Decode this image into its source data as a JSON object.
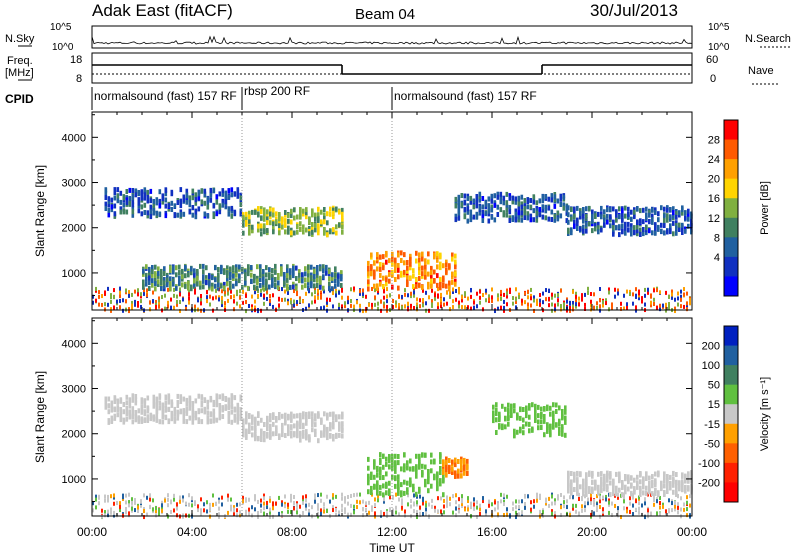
{
  "header": {
    "station": "Adak East (fitACF)",
    "beam": "Beam 04",
    "date": "30/Jul/2013"
  },
  "strip": {
    "nsky_label": "N.Sky",
    "nsearch_label": "N.Search",
    "freq_label_line1": "Freq.",
    "freq_label_line2": "[MHz]",
    "nave_label": "Nave",
    "cpid_label": "CPID",
    "nsky_ticks": [
      "10^5",
      "10^0"
    ],
    "nsearch_ticks": [
      "10^5",
      "10^0"
    ],
    "freq_ticks": [
      "18",
      "8"
    ],
    "nave_ticks": [
      "60",
      "0"
    ],
    "cpid_segments": [
      {
        "label": "normalsound (fast) 157 RF",
        "start": 0,
        "end": 6
      },
      {
        "label": "rbsp 200 RF",
        "start": 6,
        "end": 12
      },
      {
        "label": "normalsound (fast) 157 RF",
        "start": 12,
        "end": 24
      }
    ],
    "freq_steps": [
      {
        "start": 0,
        "end": 10,
        "value": 14
      },
      {
        "start": 10,
        "end": 18,
        "value": 11
      },
      {
        "start": 18,
        "end": 24,
        "value": 14
      }
    ]
  },
  "chart_data": [
    {
      "type": "heatmap",
      "title": "",
      "xlabel": "Time UT",
      "ylabel": "Slant Range [km]",
      "xlim": [
        0,
        24
      ],
      "ylim": [
        180,
        4560
      ],
      "x_ticks": [
        "00:00",
        "04:00",
        "08:00",
        "12:00",
        "16:00",
        "20:00",
        "00:00"
      ],
      "y_ticks": [
        1000,
        2000,
        3000,
        4000
      ],
      "colorbar": {
        "label": "Power [dB]",
        "ticks": [
          "28",
          "24",
          "20",
          "16",
          "12",
          "8",
          "4"
        ],
        "colors": [
          "#ff0000",
          "#ff5a00",
          "#ffa000",
          "#ffd400",
          "#80b040",
          "#408060",
          "#2060a0",
          "#1030c0",
          "#0000ff"
        ]
      },
      "regions": [
        {
          "t0": 0.5,
          "t1": 6,
          "r0": 2300,
          "r1": 2900,
          "level": 8
        },
        {
          "t0": 6,
          "t1": 10,
          "r0": 1900,
          "r1": 2500,
          "level": 16
        },
        {
          "t0": 11,
          "t1": 14.5,
          "r0": 700,
          "r1": 1500,
          "level": 24
        },
        {
          "t0": 2,
          "t1": 10,
          "r0": 700,
          "r1": 1200,
          "level": 12
        },
        {
          "t0": 14.5,
          "t1": 19,
          "r0": 2200,
          "r1": 2800,
          "level": 8
        },
        {
          "t0": 19,
          "t1": 24,
          "r0": 1900,
          "r1": 2500,
          "level": 8
        }
      ]
    },
    {
      "type": "heatmap",
      "title": "",
      "xlabel": "Time UT",
      "ylabel": "Slant Range [km]",
      "xlim": [
        0,
        24
      ],
      "ylim": [
        180,
        4560
      ],
      "x_ticks": [
        "00:00",
        "04:00",
        "08:00",
        "12:00",
        "16:00",
        "20:00",
        "00:00"
      ],
      "y_ticks": [
        1000,
        2000,
        3000,
        4000
      ],
      "colorbar": {
        "label": "Velocity [m s⁻¹]",
        "ticks": [
          "200",
          "100",
          "50",
          "15",
          "-15",
          "-50",
          "-100",
          "-200"
        ],
        "colors": [
          "#0020c0",
          "#2060a0",
          "#408060",
          "#60c040",
          "#c8c8c8",
          "#ffa000",
          "#ff6000",
          "#ff2000",
          "#ff0000"
        ]
      },
      "regions": [
        {
          "t0": 0.5,
          "t1": 6,
          "r0": 2300,
          "r1": 2900,
          "level": 0
        },
        {
          "t0": 6,
          "t1": 10,
          "r0": 1900,
          "r1": 2500,
          "level": 0
        },
        {
          "t0": 11,
          "t1": 14,
          "r0": 700,
          "r1": 1600,
          "level": 30
        },
        {
          "t0": 14,
          "t1": 15,
          "r0": 1100,
          "r1": 1500,
          "level": -50
        },
        {
          "t0": 16,
          "t1": 19,
          "r0": 2000,
          "r1": 2700,
          "level": 30
        },
        {
          "t0": 19,
          "t1": 24,
          "r0": 700,
          "r1": 1200,
          "level": 0
        }
      ]
    }
  ]
}
